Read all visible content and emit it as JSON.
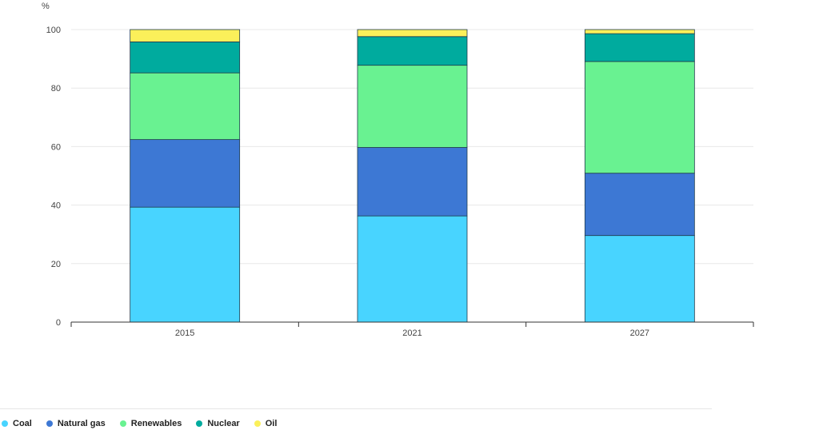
{
  "chart_data": {
    "type": "bar",
    "stacked": true,
    "unit_label": "%",
    "categories": [
      "2015",
      "2021",
      "2027"
    ],
    "ylim": [
      0,
      100
    ],
    "yticks": [
      0,
      20,
      40,
      60,
      80,
      100
    ],
    "grid": true,
    "legend_position": "bottom-left",
    "series": [
      {
        "name": "Coal",
        "color": "#48d4ff",
        "values": [
          39.3,
          36.3,
          29.6
        ]
      },
      {
        "name": "Natural gas",
        "color": "#3d78d4",
        "values": [
          23.1,
          23.4,
          21.3
        ]
      },
      {
        "name": "Renewables",
        "color": "#69f291",
        "values": [
          22.8,
          28.1,
          38.2
        ]
      },
      {
        "name": "Nuclear",
        "color": "#00ab9e",
        "values": [
          10.6,
          9.8,
          9.5
        ]
      },
      {
        "name": "Oil",
        "color": "#fbf05a",
        "values": [
          4.2,
          2.4,
          1.4
        ]
      }
    ]
  }
}
